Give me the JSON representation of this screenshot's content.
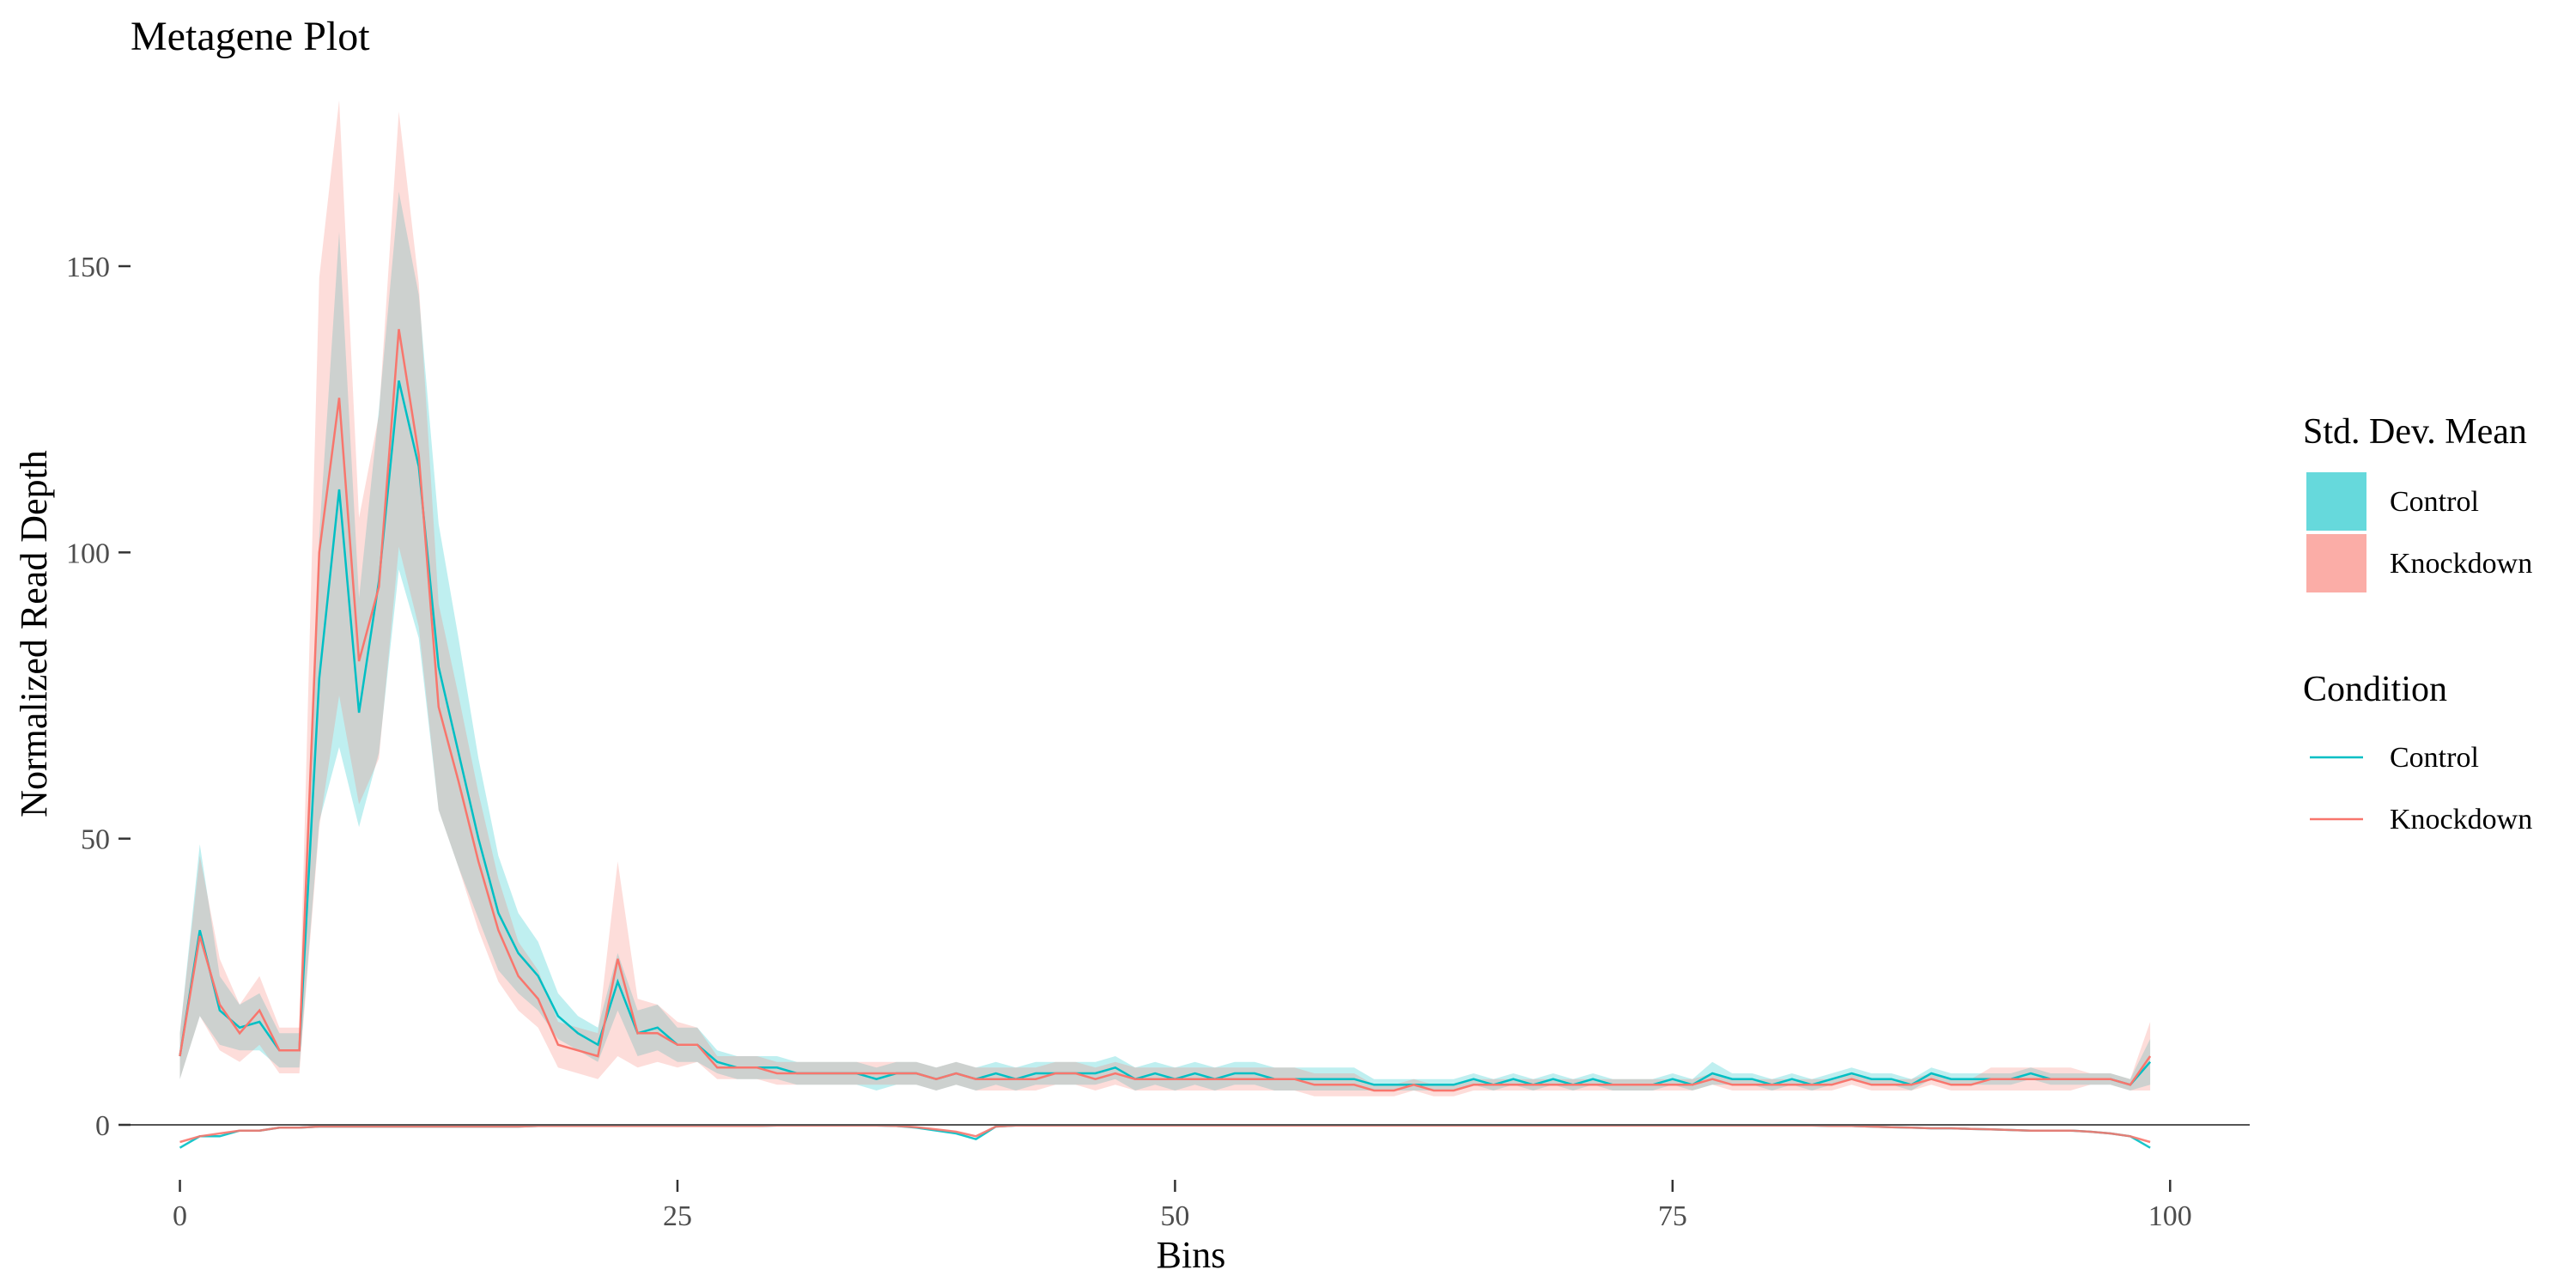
{
  "chart_data": {
    "type": "line",
    "title": "Metagene Plot",
    "xlabel": "Bins",
    "ylabel": "Normalized Read Depth",
    "xlim": [
      -3,
      104
    ],
    "ylim": [
      -15,
      180
    ],
    "x_ticks": [
      0,
      25,
      50,
      75,
      100
    ],
    "y_ticks": [
      0,
      50,
      100,
      150
    ],
    "zero_line": true,
    "grid": false,
    "legend_position": "right",
    "legends": [
      {
        "title": "Std. Dev. Mean",
        "kind": "fill",
        "entries": [
          {
            "label": "Control",
            "color": "#00BFC4"
          },
          {
            "label": "Knockdown",
            "color": "#F8766D"
          }
        ]
      },
      {
        "title": "Condition",
        "kind": "line",
        "entries": [
          {
            "label": "Control",
            "color": "#00BFC4"
          },
          {
            "label": "Knockdown",
            "color": "#F8766D"
          }
        ]
      }
    ],
    "x": [
      0,
      1,
      2,
      3,
      4,
      5,
      6,
      7,
      8,
      9,
      10,
      11,
      12,
      13,
      14,
      15,
      16,
      17,
      18,
      19,
      20,
      21,
      22,
      23,
      24,
      25,
      26,
      27,
      28,
      29,
      30,
      31,
      32,
      33,
      34,
      35,
      36,
      37,
      38,
      39,
      40,
      41,
      42,
      43,
      44,
      45,
      46,
      47,
      48,
      49,
      50,
      51,
      52,
      53,
      54,
      55,
      56,
      57,
      58,
      59,
      60,
      61,
      62,
      63,
      64,
      65,
      66,
      67,
      68,
      69,
      70,
      71,
      72,
      73,
      74,
      75,
      76,
      77,
      78,
      79,
      80,
      81,
      82,
      83,
      84,
      85,
      86,
      87,
      88,
      89,
      90,
      91,
      92,
      93,
      94,
      95,
      96,
      97,
      98,
      99
    ],
    "series": [
      {
        "name": "Control",
        "color": "#00BFC4",
        "mean": [
          12,
          34,
          20,
          17,
          18,
          13,
          13,
          78,
          111,
          72,
          95,
          130,
          115,
          80,
          65,
          50,
          37,
          30,
          26,
          19,
          16,
          14,
          25,
          16,
          17,
          14,
          14,
          11,
          10,
          10,
          10,
          9,
          9,
          9,
          9,
          8,
          9,
          9,
          8,
          9,
          8,
          9,
          8,
          9,
          9,
          9,
          9,
          10,
          8,
          9,
          8,
          9,
          8,
          9,
          9,
          8,
          8,
          8,
          8,
          8,
          7,
          7,
          7,
          7,
          7,
          8,
          7,
          8,
          7,
          8,
          7,
          8,
          7,
          7,
          7,
          8,
          7,
          9,
          8,
          8,
          7,
          8,
          7,
          8,
          9,
          8,
          8,
          7,
          9,
          8,
          8,
          8,
          8,
          9,
          8,
          8,
          8,
          8,
          7,
          11
        ],
        "sd": [
          4,
          15,
          6,
          4,
          5,
          3,
          3,
          25,
          45,
          20,
          30,
          33,
          30,
          25,
          20,
          14,
          10,
          7,
          6,
          4,
          3,
          3,
          5,
          4,
          4,
          3,
          3,
          2,
          2,
          2,
          2,
          2,
          2,
          2,
          2,
          2,
          2,
          2,
          2,
          2,
          2,
          2,
          2,
          2,
          2,
          2,
          2,
          2,
          2,
          2,
          2,
          2,
          2,
          2,
          2,
          2,
          2,
          2,
          2,
          2,
          1,
          1,
          1,
          1,
          1,
          1,
          1,
          1,
          1,
          1,
          1,
          1,
          1,
          1,
          1,
          1,
          1,
          2,
          1,
          1,
          1,
          1,
          1,
          1,
          1,
          1,
          1,
          1,
          1,
          1,
          1,
          1,
          1,
          1,
          1,
          1,
          1,
          1,
          1,
          4
        ],
        "lower": [
          -4,
          -2,
          -2,
          -1,
          -1,
          -0.5,
          -0.5,
          -0.3,
          -0.3,
          -0.3,
          -0.3,
          -0.3,
          -0.3,
          -0.3,
          -0.3,
          -0.3,
          -0.3,
          -0.3,
          -0.2,
          -0.2,
          -0.2,
          -0.2,
          -0.2,
          -0.2,
          -0.2,
          -0.2,
          -0.2,
          -0.2,
          -0.2,
          -0.2,
          -0.1,
          -0.1,
          -0.1,
          -0.1,
          -0.1,
          -0.1,
          -0.2,
          -0.5,
          -1,
          -1.5,
          -2.5,
          -0.3,
          -0.1,
          -0.1,
          -0.1,
          -0.1,
          -0.1,
          -0.1,
          -0.1,
          -0.1,
          -0.1,
          -0.1,
          -0.1,
          -0.1,
          -0.1,
          -0.1,
          -0.1,
          -0.1,
          -0.1,
          -0.1,
          -0.1,
          -0.1,
          -0.1,
          -0.1,
          -0.1,
          -0.1,
          -0.1,
          -0.1,
          -0.1,
          -0.1,
          -0.1,
          -0.1,
          -0.1,
          -0.1,
          -0.1,
          -0.1,
          -0.1,
          -0.1,
          -0.1,
          -0.1,
          -0.1,
          -0.1,
          -0.1,
          -0.2,
          -0.2,
          -0.3,
          -0.4,
          -0.5,
          -0.6,
          -0.6,
          -0.7,
          -0.8,
          -0.9,
          -1,
          -1,
          -1,
          -1.2,
          -1.5,
          -2,
          -4
        ]
      },
      {
        "name": "Knockdown",
        "color": "#F8766D",
        "mean": [
          12,
          33,
          21,
          16,
          20,
          13,
          13,
          100,
          127,
          81,
          94,
          139,
          117,
          73,
          60,
          46,
          34,
          26,
          22,
          14,
          13,
          12,
          29,
          16,
          16,
          14,
          14,
          10,
          10,
          10,
          9,
          9,
          9,
          9,
          9,
          9,
          9,
          9,
          8,
          9,
          8,
          8,
          8,
          8,
          9,
          9,
          8,
          9,
          8,
          8,
          8,
          8,
          8,
          8,
          8,
          8,
          8,
          7,
          7,
          7,
          6,
          6,
          7,
          6,
          6,
          7,
          7,
          7,
          7,
          7,
          7,
          7,
          7,
          7,
          7,
          7,
          7,
          8,
          7,
          7,
          7,
          7,
          7,
          7,
          8,
          7,
          7,
          7,
          8,
          7,
          7,
          8,
          8,
          8,
          8,
          8,
          8,
          8,
          7,
          12
        ],
        "sd": [
          4,
          14,
          8,
          5,
          6,
          4,
          4,
          48,
          52,
          25,
          30,
          38,
          30,
          18,
          15,
          12,
          9,
          6,
          5,
          4,
          4,
          4,
          17,
          6,
          5,
          4,
          3,
          2,
          2,
          2,
          2,
          2,
          2,
          2,
          2,
          2,
          2,
          2,
          2,
          2,
          2,
          2,
          2,
          2,
          2,
          2,
          2,
          2,
          2,
          2,
          2,
          2,
          2,
          2,
          2,
          2,
          2,
          2,
          2,
          2,
          1,
          1,
          1,
          1,
          1,
          1,
          1,
          1,
          1,
          1,
          1,
          1,
          1,
          1,
          1,
          1,
          1,
          1,
          1,
          1,
          1,
          1,
          1,
          1,
          1,
          1,
          1,
          1,
          1,
          1,
          1,
          2,
          2,
          2,
          2,
          2,
          1,
          1,
          1,
          6
        ],
        "lower": [
          -3,
          -2,
          -1.5,
          -1,
          -1,
          -0.5,
          -0.5,
          -0.3,
          -0.3,
          -0.3,
          -0.3,
          -0.3,
          -0.3,
          -0.3,
          -0.3,
          -0.3,
          -0.3,
          -0.3,
          -0.2,
          -0.2,
          -0.2,
          -0.2,
          -0.2,
          -0.2,
          -0.2,
          -0.2,
          -0.2,
          -0.2,
          -0.2,
          -0.2,
          -0.1,
          -0.1,
          -0.1,
          -0.1,
          -0.1,
          -0.1,
          -0.2,
          -0.4,
          -0.8,
          -1.2,
          -2,
          -0.3,
          -0.1,
          -0.1,
          -0.1,
          -0.1,
          -0.1,
          -0.1,
          -0.1,
          -0.1,
          -0.1,
          -0.1,
          -0.1,
          -0.1,
          -0.1,
          -0.1,
          -0.1,
          -0.1,
          -0.1,
          -0.1,
          -0.1,
          -0.1,
          -0.1,
          -0.1,
          -0.1,
          -0.1,
          -0.1,
          -0.1,
          -0.1,
          -0.1,
          -0.1,
          -0.1,
          -0.1,
          -0.1,
          -0.1,
          -0.1,
          -0.1,
          -0.1,
          -0.1,
          -0.1,
          -0.1,
          -0.1,
          -0.1,
          -0.2,
          -0.2,
          -0.3,
          -0.4,
          -0.5,
          -0.6,
          -0.6,
          -0.7,
          -0.8,
          -0.9,
          -1,
          -1,
          -1,
          -1.2,
          -1.5,
          -2,
          -3
        ]
      }
    ]
  }
}
